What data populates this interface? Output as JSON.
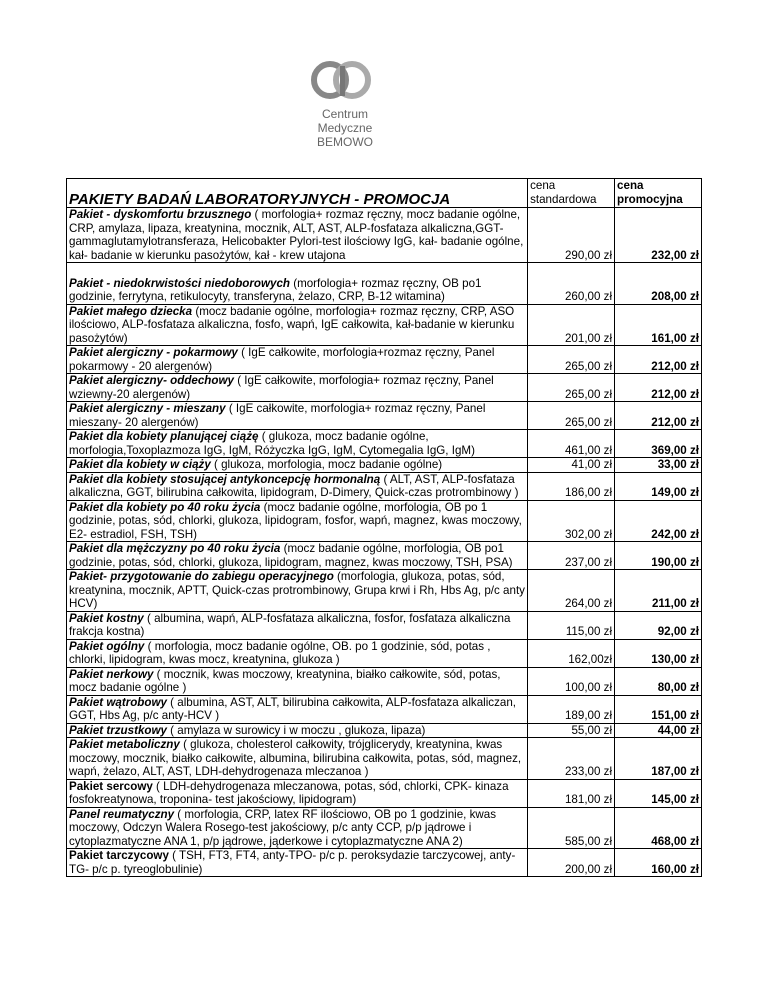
{
  "logo": {
    "line1": "Centrum",
    "line2": "Medyczne",
    "line3": "BEMOWO"
  },
  "table": {
    "title": "PAKIETY BADAŃ LABORATORYJNYCH - PROMOCJA",
    "col_standard": "cena standardowa",
    "col_promo": "cena promocyjna",
    "rows": [
      {
        "name": "Pakiet - dyskomfortu brzusznego",
        "desc": "( morfologia+ rozmaz ręczny, mocz badanie ogólne, CRP, amylaza, lipaza, kreatynina, mocznik, ALT, AST, ALP-fosfataza alkaliczna,GGT- gammaglutamylotransferaza, Helicobakter Pylori-test ilościowy IgG, kał- badanie ogólne, kał- badanie w kierunku pasożytów, kał - krew utajona",
        "standard": "290,00 zł",
        "promo": "232,00 zł"
      },
      {
        "name": "Pakiet - niedokrwistości niedoborowych",
        "desc": "(morfologia+ rozmaz ręczny, OB po1 godzinie, ferrytyna, retikulocyty, transferyna, żelazo, CRP, B-12 witamina)",
        "standard": "260,00 zł",
        "promo": "208,00 zł",
        "spacer": true
      },
      {
        "name": "Pakiet małego dziecka",
        "desc": "(mocz badanie ogólne, morfologia+ rozmaz ręczny, CRP, ASO ilościowo, ALP-fosfataza alkaliczna, fosfo, wapń, IgE całkowita, kał-badanie w kierunku pasożytów)",
        "standard": "201,00 zł",
        "promo": "161,00 zł"
      },
      {
        "name": "Pakiet alergiczny - pokarmowy",
        "desc": "( IgE całkowite, morfologia+rozmaz ręczny, Panel pokarmowy - 20 alergenów)",
        "standard": "265,00 zł",
        "promo": "212,00 zł"
      },
      {
        "name": "Pakiet alergiczny- oddechowy",
        "desc": "( IgE całkowite, morfologia+ rozmaz ręczny, Panel wziewny-20 alergenów)",
        "standard": "265,00 zł",
        "promo": "212,00 zł"
      },
      {
        "name": "Pakiet alergiczny - mieszany",
        "desc": "( IgE całkowite, morfologia+ rozmaz ręczny, Panel mieszany- 20 alergenów)",
        "standard": "265,00 zł",
        "promo": "212,00 zł"
      },
      {
        "name": "Pakiet dla kobiety planującej ciążę",
        "desc": "( glukoza, mocz badanie ogólne, morfologia,Toxoplazmoza IgG, IgM, Różyczka IgG, IgM, Cytomegalia IgG, IgM)",
        "standard": "461,00 zł",
        "promo": "369,00 zł"
      },
      {
        "name": "Pakiet dla kobiety w ciąży",
        "desc": "( glukoza, morfologia, mocz badanie ogólne)",
        "standard": "41,00 zł",
        "promo": "33,00 zł"
      },
      {
        "name": "Pakiet dla kobiety stosującej antykoncepcję hormonalną",
        "desc": "( ALT, AST, ALP-fosfataza alkaliczna, GGT, bilirubina całkowita, lipidogram, D-Dimery, Quick-czas protrombinowy )",
        "standard": "186,00 zł",
        "promo": "149,00 zł"
      },
      {
        "name": "Pakiet dla kobiety po 40 roku życia",
        "desc": "(mocz badanie ogólne, morfologia, OB po 1 godzinie, potas, sód, chlorki, glukoza, lipidogram, fosfor, wapń, magnez, kwas moczowy, E2- estradiol, FSH, TSH)",
        "standard": "302,00 zł",
        "promo": "242,00 zł"
      },
      {
        "name": "Pakiet dla mężczyzny po 40 roku życia",
        "desc": "(mocz badanie ogólne, morfologia, OB po1 godzinie, potas, sód, chlorki, glukoza, lipidogram, magnez, kwas moczowy, TSH, PSA)",
        "standard": "237,00 zł",
        "promo": "190,00 zł"
      },
      {
        "name": "Pakiet- przygotowanie do zabiegu operacyjnego",
        "desc": "(morfologia, glukoza, potas, sód, kreatynina, mocznik, APTT, Quick-czas protrombinowy, Grupa krwi i Rh, Hbs Ag, p/c anty HCV)",
        "standard": "264,00 zł",
        "promo": "211,00 zł"
      },
      {
        "name": "Pakiet kostny",
        "desc": "( albumina, wapń, ALP-fosfataza alkaliczna, fosfor, fosfataza alkaliczna frakcja kostna)",
        "standard": "115,00 zł",
        "promo": "92,00 zł"
      },
      {
        "name": "Pakiet ogólny",
        "desc": "( morfologia, mocz badanie ogólne, OB. po 1 godzinie, sód, potas , chlorki, lipidogram, kwas mocz, kreatynina, glukoza )",
        "standard": "162,00zł",
        "promo": "130,00 zł"
      },
      {
        "name": "Pakiet nerkowy",
        "desc": "( mocznik, kwas moczowy, kreatynina, białko całkowite, sód, potas, mocz badanie ogólne )",
        "standard": "100,00 zł",
        "promo": "80,00 zł"
      },
      {
        "name": "Pakiet wątrobowy",
        "desc": "( albumina, AST, ALT, bilirubina całkowita, ALP-fosfataza alkaliczan, GGT, Hbs Ag, p/c anty-HCV )",
        "standard": "189,00 zł",
        "promo": "151,00 zł"
      },
      {
        "name": "Pakiet trzustkowy",
        "desc": "( amylaza w surowicy i w moczu , glukoza, lipaza)",
        "standard": "55,00 zł",
        "promo": "44,00 zł"
      },
      {
        "name": "Pakiet metaboliczny",
        "desc": "( glukoza, cholesterol całkowity, trójglicerydy, kreatynina, kwas moczowy, mocznik, białko całkowite, albumina, bilirubina całkowita, potas, sód, magnez, wapń, żelazo, ALT, AST, LDH-dehydrogenaza mleczanoa )",
        "standard": "233,00 zł",
        "promo": "187,00 zł"
      },
      {
        "name": "Pakiet sercowy",
        "desc": "( LDH-dehydrogenaza mleczanowa, potas, sód, chlorki, CPK- kinaza fosfokreatynowa, troponina- test jakościowy, lipidogram)",
        "standard": "181,00 zł",
        "promo": "145,00 zł",
        "plain": true
      },
      {
        "name": "Panel reumatyczny",
        "desc": "( morfologia, CRP, latex RF ilościowo, OB po 1 godzinie, kwas moczowy, Odczyn Walera Rosego-test jakościowy, p/c anty CCP, p/p jądrowe i cytoplazmatyczne ANA 1, p/p jądrowe, jąderkowe i cytoplazmatyczne ANA 2)",
        "standard": "585,00 zł",
        "promo": "468,00 zł"
      },
      {
        "name": "Pakiet tarczycowy",
        "desc": "( TSH, FT3, FT4, anty-TPO- p/c p. peroksydazie tarczycowej, anty-TG- p/c p. tyreoglobulinie)",
        "standard": "200,00 zł",
        "promo": "160,00 zł",
        "plain": true
      }
    ]
  }
}
